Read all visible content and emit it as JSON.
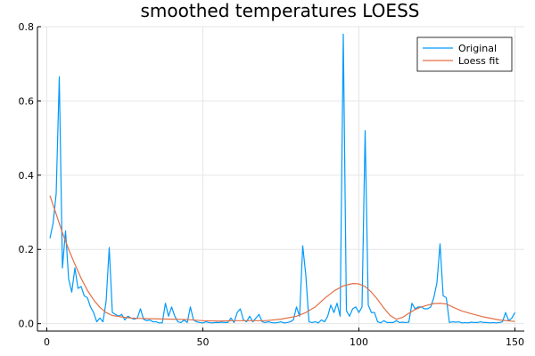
{
  "chart_data": {
    "type": "line",
    "title": "smoothed temperatures LOESS",
    "xlabel": "",
    "ylabel": "",
    "xlim": [
      -3,
      153
    ],
    "ylim": [
      -0.02,
      0.8
    ],
    "grid": true,
    "legend_position": "top-right",
    "x_ticks": [
      0,
      50,
      100,
      150
    ],
    "x_tick_labels": [
      "0",
      "50",
      "100",
      "150"
    ],
    "y_ticks": [
      0.0,
      0.2,
      0.4,
      0.6,
      0.8
    ],
    "y_tick_labels": [
      "0.0",
      "0.2",
      "0.4",
      "0.6",
      "0.8"
    ],
    "series": [
      {
        "name": "Original",
        "color": "#009AFA",
        "x": [
          1,
          2,
          3,
          4,
          5,
          6,
          7,
          8,
          9,
          10,
          11,
          12,
          13,
          14,
          15,
          16,
          17,
          18,
          19,
          20,
          21,
          22,
          23,
          24,
          25,
          26,
          27,
          28,
          29,
          30,
          31,
          32,
          33,
          34,
          35,
          36,
          37,
          38,
          39,
          40,
          41,
          42,
          43,
          44,
          45,
          46,
          47,
          48,
          49,
          50,
          51,
          52,
          53,
          54,
          55,
          56,
          57,
          58,
          59,
          60,
          61,
          62,
          63,
          64,
          65,
          66,
          67,
          68,
          69,
          70,
          71,
          72,
          73,
          74,
          75,
          76,
          77,
          78,
          79,
          80,
          81,
          82,
          83,
          84,
          85,
          86,
          87,
          88,
          89,
          90,
          91,
          92,
          93,
          94,
          95,
          96,
          97,
          98,
          99,
          100,
          101,
          102,
          103,
          104,
          105,
          106,
          107,
          108,
          109,
          110,
          111,
          112,
          113,
          114,
          115,
          116,
          117,
          118,
          119,
          120,
          121,
          122,
          123,
          124,
          125,
          126,
          127,
          128,
          129,
          130,
          131,
          132,
          133,
          134,
          135,
          136,
          137,
          138,
          139,
          140,
          141,
          142,
          143,
          144,
          145,
          146,
          147,
          148,
          149,
          150
        ],
        "y": [
          0.23,
          0.27,
          0.35,
          0.665,
          0.15,
          0.25,
          0.12,
          0.085,
          0.15,
          0.095,
          0.1,
          0.075,
          0.07,
          0.045,
          0.03,
          0.005,
          0.015,
          0.005,
          0.06,
          0.205,
          0.03,
          0.025,
          0.02,
          0.025,
          0.01,
          0.02,
          0.015,
          0.012,
          0.015,
          0.04,
          0.012,
          0.008,
          0.01,
          0.005,
          0.005,
          0.002,
          0.002,
          0.055,
          0.02,
          0.045,
          0.02,
          0.005,
          0.003,
          0.01,
          0.003,
          0.045,
          0.01,
          0.005,
          0.003,
          0.002,
          0.005,
          0.003,
          0.002,
          0.003,
          0.003,
          0.004,
          0.003,
          0.003,
          0.015,
          0.003,
          0.03,
          0.04,
          0.01,
          0.005,
          0.02,
          0.005,
          0.015,
          0.025,
          0.005,
          0.003,
          0.005,
          0.003,
          0.002,
          0.003,
          0.005,
          0.002,
          0.003,
          0.005,
          0.01,
          0.045,
          0.02,
          0.21,
          0.13,
          0.005,
          0.003,
          0.005,
          0.002,
          0.01,
          0.005,
          0.02,
          0.05,
          0.03,
          0.055,
          0.02,
          0.78,
          0.035,
          0.02,
          0.04,
          0.045,
          0.03,
          0.045,
          0.52,
          0.05,
          0.03,
          0.03,
          0.005,
          0.002,
          0.008,
          0.003,
          0.003,
          0.003,
          0.008,
          0.003,
          0.004,
          0.003,
          0.004,
          0.055,
          0.04,
          0.045,
          0.045,
          0.04,
          0.04,
          0.045,
          0.07,
          0.11,
          0.215,
          0.075,
          0.07,
          0.003,
          0.005,
          0.004,
          0.005,
          0.002,
          0.003,
          0.002,
          0.004,
          0.003,
          0.003,
          0.005,
          0.003,
          0.003,
          0.002,
          0.003,
          0.002,
          0.003,
          0.005,
          0.03,
          0.008,
          0.015,
          0.03
        ]
      },
      {
        "name": "Loess fit",
        "color": "#E26F46",
        "x": [
          1,
          3,
          5,
          7,
          9,
          11,
          13,
          15,
          17,
          19,
          21,
          24,
          27,
          30,
          35,
          40,
          45,
          50,
          55,
          60,
          65,
          70,
          75,
          80,
          83,
          86,
          89,
          92,
          95,
          98,
          100,
          102,
          104,
          106,
          108,
          110,
          112,
          114,
          116,
          118,
          120,
          122,
          124,
          126,
          128,
          130,
          133,
          136,
          140,
          145,
          150
        ],
        "y": [
          0.345,
          0.295,
          0.245,
          0.2,
          0.16,
          0.122,
          0.09,
          0.064,
          0.044,
          0.03,
          0.022,
          0.018,
          0.015,
          0.014,
          0.013,
          0.012,
          0.011,
          0.008,
          0.007,
          0.008,
          0.008,
          0.008,
          0.012,
          0.02,
          0.03,
          0.045,
          0.068,
          0.088,
          0.102,
          0.108,
          0.107,
          0.1,
          0.085,
          0.065,
          0.042,
          0.022,
          0.012,
          0.017,
          0.028,
          0.038,
          0.045,
          0.05,
          0.054,
          0.055,
          0.053,
          0.045,
          0.034,
          0.027,
          0.018,
          0.01,
          0.006
        ]
      }
    ]
  }
}
